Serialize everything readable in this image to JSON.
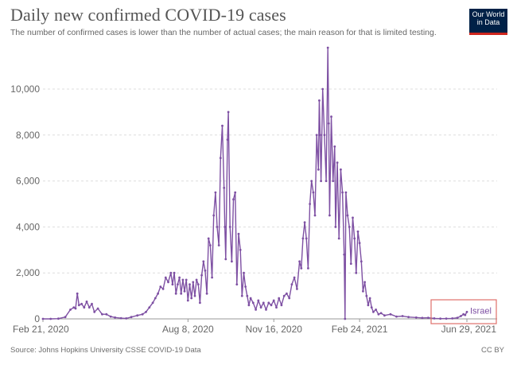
{
  "header": {
    "title": "Daily new confirmed COVID-19 cases",
    "subtitle": "The number of confirmed cases is lower than the number of actual cases; the main reason for that is limited testing."
  },
  "logo": {
    "line1": "Our World",
    "line2": "in Data",
    "bg_color": "#002147",
    "accent_color": "#ce261e"
  },
  "footer": {
    "source": "Source: Johns Hopkins University CSSE COVID-19 Data",
    "license": "CC BY"
  },
  "colors": {
    "series": "#7e50a3",
    "grid": "#dddddd",
    "highlight_box": "#e0706b"
  },
  "chart_data": {
    "type": "line",
    "title": "Daily new confirmed COVID-19 cases",
    "subtitle": "The number of confirmed cases is lower than the number of actual cases; the main reason for that is limited testing.",
    "xlabel": "",
    "ylabel": "",
    "x_start": "2020-02-21",
    "x_end": "2021-06-29",
    "ylim": [
      0,
      12000
    ],
    "y_ticks": [
      "0",
      "2,000",
      "4,000",
      "6,000",
      "8,000",
      "10,000"
    ],
    "x_ticks": [
      "Feb 21, 2020",
      "Aug 8, 2020",
      "Nov 16, 2020",
      "Feb 24, 2021",
      "Jun 29, 2021"
    ],
    "grid": true,
    "series": [
      {
        "name": "Israel",
        "points": [
          [
            "2020-02-21",
            0
          ],
          [
            "2020-03-01",
            0
          ],
          [
            "2020-03-10",
            10
          ],
          [
            "2020-03-18",
            80
          ],
          [
            "2020-03-24",
            400
          ],
          [
            "2020-03-28",
            500
          ],
          [
            "2020-03-30",
            450
          ],
          [
            "2020-04-01",
            1100
          ],
          [
            "2020-04-03",
            600
          ],
          [
            "2020-04-06",
            650
          ],
          [
            "2020-04-09",
            500
          ],
          [
            "2020-04-12",
            750
          ],
          [
            "2020-04-15",
            500
          ],
          [
            "2020-04-18",
            650
          ],
          [
            "2020-04-21",
            300
          ],
          [
            "2020-04-25",
            450
          ],
          [
            "2020-04-30",
            200
          ],
          [
            "2020-05-05",
            200
          ],
          [
            "2020-05-10",
            100
          ],
          [
            "2020-05-15",
            60
          ],
          [
            "2020-05-22",
            30
          ],
          [
            "2020-05-28",
            20
          ],
          [
            "2020-06-03",
            80
          ],
          [
            "2020-06-10",
            150
          ],
          [
            "2020-06-16",
            200
          ],
          [
            "2020-06-20",
            300
          ],
          [
            "2020-06-24",
            500
          ],
          [
            "2020-06-28",
            700
          ],
          [
            "2020-07-01",
            900
          ],
          [
            "2020-07-04",
            1100
          ],
          [
            "2020-07-07",
            1400
          ],
          [
            "2020-07-10",
            1300
          ],
          [
            "2020-07-13",
            1800
          ],
          [
            "2020-07-16",
            1600
          ],
          [
            "2020-07-19",
            2000
          ],
          [
            "2020-07-21",
            1500
          ],
          [
            "2020-07-23",
            2000
          ],
          [
            "2020-07-25",
            1100
          ],
          [
            "2020-07-27",
            1500
          ],
          [
            "2020-07-29",
            1800
          ],
          [
            "2020-07-31",
            1100
          ],
          [
            "2020-08-02",
            1700
          ],
          [
            "2020-08-04",
            1200
          ],
          [
            "2020-08-06",
            1700
          ],
          [
            "2020-08-08",
            800
          ],
          [
            "2020-08-10",
            1500
          ],
          [
            "2020-08-12",
            900
          ],
          [
            "2020-08-14",
            1600
          ],
          [
            "2020-08-16",
            1000
          ],
          [
            "2020-08-18",
            1700
          ],
          [
            "2020-08-20",
            1500
          ],
          [
            "2020-08-22",
            700
          ],
          [
            "2020-08-24",
            1900
          ],
          [
            "2020-08-26",
            2500
          ],
          [
            "2020-08-28",
            2100
          ],
          [
            "2020-08-30",
            1100
          ],
          [
            "2020-09-01",
            3500
          ],
          [
            "2020-09-03",
            3200
          ],
          [
            "2020-09-05",
            1800
          ],
          [
            "2020-09-07",
            4500
          ],
          [
            "2020-09-09",
            5500
          ],
          [
            "2020-09-11",
            4000
          ],
          [
            "2020-09-13",
            3200
          ],
          [
            "2020-09-15",
            7000
          ],
          [
            "2020-09-17",
            8400
          ],
          [
            "2020-09-19",
            5700
          ],
          [
            "2020-09-20",
            4000
          ],
          [
            "2020-09-21",
            2600
          ],
          [
            "2020-09-23",
            7800
          ],
          [
            "2020-09-24",
            9000
          ],
          [
            "2020-09-26",
            4000
          ],
          [
            "2020-09-28",
            2500
          ],
          [
            "2020-09-30",
            5200
          ],
          [
            "2020-10-02",
            5500
          ],
          [
            "2020-10-04",
            1500
          ],
          [
            "2020-10-06",
            3700
          ],
          [
            "2020-10-08",
            3000
          ],
          [
            "2020-10-10",
            1000
          ],
          [
            "2020-10-12",
            2000
          ],
          [
            "2020-10-14",
            1400
          ],
          [
            "2020-10-16",
            1000
          ],
          [
            "2020-10-18",
            600
          ],
          [
            "2020-10-20",
            900
          ],
          [
            "2020-10-23",
            700
          ],
          [
            "2020-10-26",
            400
          ],
          [
            "2020-10-29",
            800
          ],
          [
            "2020-11-01",
            500
          ],
          [
            "2020-11-04",
            700
          ],
          [
            "2020-11-07",
            400
          ],
          [
            "2020-11-10",
            700
          ],
          [
            "2020-11-13",
            600
          ],
          [
            "2020-11-16",
            800
          ],
          [
            "2020-11-19",
            500
          ],
          [
            "2020-11-22",
            900
          ],
          [
            "2020-11-25",
            600
          ],
          [
            "2020-11-28",
            1000
          ],
          [
            "2020-12-01",
            1100
          ],
          [
            "2020-12-04",
            900
          ],
          [
            "2020-12-07",
            1500
          ],
          [
            "2020-12-10",
            1800
          ],
          [
            "2020-12-13",
            1300
          ],
          [
            "2020-12-16",
            2500
          ],
          [
            "2020-12-18",
            2200
          ],
          [
            "2020-12-20",
            3500
          ],
          [
            "2020-12-22",
            4200
          ],
          [
            "2020-12-24",
            3500
          ],
          [
            "2020-12-26",
            2200
          ],
          [
            "2020-12-28",
            5000
          ],
          [
            "2020-12-30",
            6000
          ],
          [
            "2021-01-01",
            5500
          ],
          [
            "2021-01-03",
            4500
          ],
          [
            "2021-01-05",
            8000
          ],
          [
            "2021-01-07",
            6500
          ],
          [
            "2021-01-08",
            9500
          ],
          [
            "2021-01-09",
            8000
          ],
          [
            "2021-01-10",
            6000
          ],
          [
            "2021-01-12",
            10000
          ],
          [
            "2021-01-14",
            8000
          ],
          [
            "2021-01-16",
            6000
          ],
          [
            "2021-01-18",
            11800
          ],
          [
            "2021-01-19",
            8500
          ],
          [
            "2021-01-20",
            4500
          ],
          [
            "2021-01-22",
            8800
          ],
          [
            "2021-01-24",
            6000
          ],
          [
            "2021-01-26",
            7500
          ],
          [
            "2021-01-27",
            4000
          ],
          [
            "2021-01-29",
            6800
          ],
          [
            "2021-01-31",
            3500
          ],
          [
            "2021-02-02",
            6500
          ],
          [
            "2021-02-04",
            5500
          ],
          [
            "2021-02-06",
            2800
          ],
          [
            "2021-02-07",
            0
          ],
          [
            "2021-02-08",
            5500
          ],
          [
            "2021-02-10",
            4500
          ],
          [
            "2021-02-12",
            4000
          ],
          [
            "2021-02-14",
            2400
          ],
          [
            "2021-02-16",
            4400
          ],
          [
            "2021-02-18",
            3500
          ],
          [
            "2021-02-20",
            2000
          ],
          [
            "2021-02-22",
            3800
          ],
          [
            "2021-02-24",
            3300
          ],
          [
            "2021-02-26",
            2500
          ],
          [
            "2021-02-28",
            1200
          ],
          [
            "2021-03-02",
            1600
          ],
          [
            "2021-03-04",
            1000
          ],
          [
            "2021-03-06",
            600
          ],
          [
            "2021-03-08",
            900
          ],
          [
            "2021-03-10",
            500
          ],
          [
            "2021-03-12",
            300
          ],
          [
            "2021-03-15",
            400
          ],
          [
            "2021-03-18",
            200
          ],
          [
            "2021-03-21",
            250
          ],
          [
            "2021-03-25",
            150
          ],
          [
            "2021-04-01",
            200
          ],
          [
            "2021-04-08",
            100
          ],
          [
            "2021-04-15",
            120
          ],
          [
            "2021-04-22",
            80
          ],
          [
            "2021-05-01",
            60
          ],
          [
            "2021-05-08",
            40
          ],
          [
            "2021-05-15",
            50
          ],
          [
            "2021-05-22",
            20
          ],
          [
            "2021-05-29",
            10
          ],
          [
            "2021-06-05",
            15
          ],
          [
            "2021-06-12",
            20
          ],
          [
            "2021-06-18",
            50
          ],
          [
            "2021-06-22",
            120
          ],
          [
            "2021-06-25",
            200
          ],
          [
            "2021-06-27",
            170
          ],
          [
            "2021-06-29",
            300
          ]
        ]
      }
    ],
    "legend": {
      "placement": "end-of-line",
      "labels": [
        "Israel"
      ]
    },
    "highlight": {
      "description": "box around latest values and series label"
    }
  }
}
